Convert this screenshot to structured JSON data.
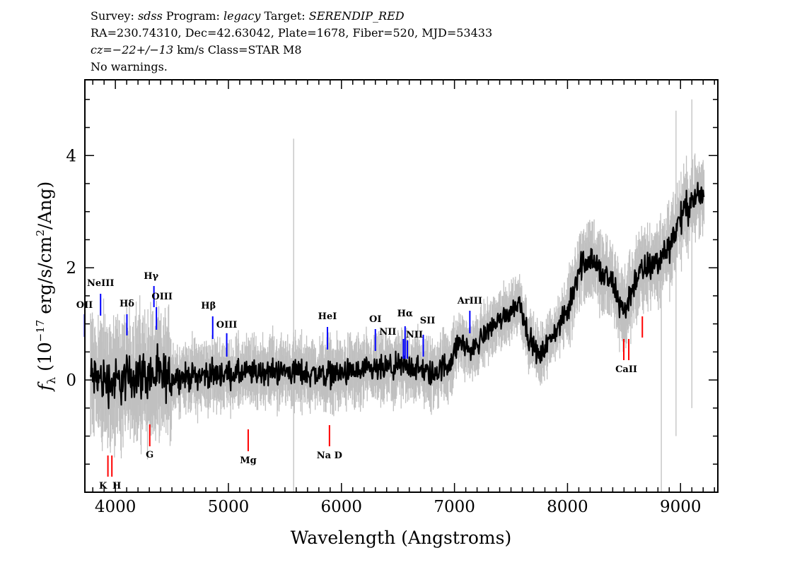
{
  "header": {
    "line1": {
      "survey_label": "Survey: ",
      "survey": "sdss",
      "program_label": " Program: ",
      "program": "legacy",
      "target_label": " Target: ",
      "target": "SERENDIP_RED"
    },
    "line2": "RA=230.74310, Dec=42.63042, Plate=1678, Fiber=520, MJD=53433",
    "line3": {
      "cz": "cz=−22+/−13",
      "rest": " km/s Class=STAR M8"
    },
    "line4": "No warnings."
  },
  "chart_data": {
    "type": "line",
    "xlabel": "Wavelength (Angstroms)",
    "ylabel": "fλ (10^-17 erg/s/cm^2/Ang)",
    "ylabel_parts": {
      "f": "f",
      "sub": "λ",
      "pre": " (10",
      "exp": "−17",
      "mid": " erg/s/cm",
      "exp2": "2",
      "post": "/Ang)"
    },
    "xlim": [
      3730,
      9330
    ],
    "ylim": [
      -2.0,
      5.35
    ],
    "xticks": [
      4000,
      5000,
      6000,
      7000,
      8000,
      9000
    ],
    "xtick_labels": [
      "4000",
      "5000",
      "6000",
      "7000",
      "8000",
      "9000"
    ],
    "yticks": [
      0,
      2,
      4
    ],
    "ytick_labels": [
      "0",
      "2",
      "4"
    ],
    "grid": false,
    "series": [
      {
        "role": "flux",
        "color": "#000000",
        "x": [
          3800,
          3900,
          4000,
          4200,
          4400,
          4600,
          4800,
          5000,
          5200,
          5400,
          5600,
          5800,
          6000,
          6200,
          6400,
          6600,
          6800,
          6950,
          7050,
          7150,
          7300,
          7450,
          7580,
          7650,
          7750,
          7900,
          8000,
          8100,
          8200,
          8300,
          8400,
          8500,
          8600,
          8700,
          8800,
          8900,
          9000,
          9100,
          9200
        ],
        "y": [
          0.05,
          0.0,
          -0.05,
          0.1,
          0.05,
          0.05,
          0.1,
          0.1,
          0.12,
          0.15,
          0.15,
          0.1,
          0.12,
          0.15,
          0.2,
          0.25,
          0.1,
          0.3,
          0.7,
          0.5,
          0.9,
          1.15,
          1.4,
          0.8,
          0.4,
          0.9,
          1.2,
          2.0,
          2.2,
          1.9,
          1.7,
          1.2,
          1.8,
          2.0,
          2.1,
          2.4,
          2.9,
          3.2,
          3.3
        ]
      },
      {
        "role": "error-band",
        "color": "#c0c0c0"
      }
    ],
    "emission_lines": [
      {
        "label": "OII",
        "wavelength": 3727
      },
      {
        "label": "NeIII",
        "wavelength": 3869
      },
      {
        "label": "Hδ",
        "wavelength": 4102
      },
      {
        "label": "Hγ",
        "wavelength": 4341
      },
      {
        "label": "OIII",
        "wavelength": 4363
      },
      {
        "label": "Hβ",
        "wavelength": 4861
      },
      {
        "label": "OIII",
        "wavelength": 4985
      },
      {
        "label": "HeI",
        "wavelength": 5876
      },
      {
        "label": "OI",
        "wavelength": 6300
      },
      {
        "label": "NII",
        "wavelength": 6548
      },
      {
        "label": "Hα",
        "wavelength": 6563
      },
      {
        "label": "NII",
        "wavelength": 6583
      },
      {
        "label": "SII",
        "wavelength": 6724
      },
      {
        "label": "ArIII",
        "wavelength": 7136
      }
    ],
    "absorption_lines": [
      {
        "label": "K",
        "wavelength": 3934
      },
      {
        "label": "H",
        "wavelength": 3969
      },
      {
        "label": "G",
        "wavelength": 4304
      },
      {
        "label": "Mg",
        "wavelength": 5175
      },
      {
        "label": "Na D",
        "wavelength": 5894
      },
      {
        "label": "CaII",
        "wavelength": 8520
      },
      {
        "label": "",
        "wavelength": 8662
      }
    ],
    "emission_color": "#0000ff",
    "absorption_color": "#ff0000"
  }
}
